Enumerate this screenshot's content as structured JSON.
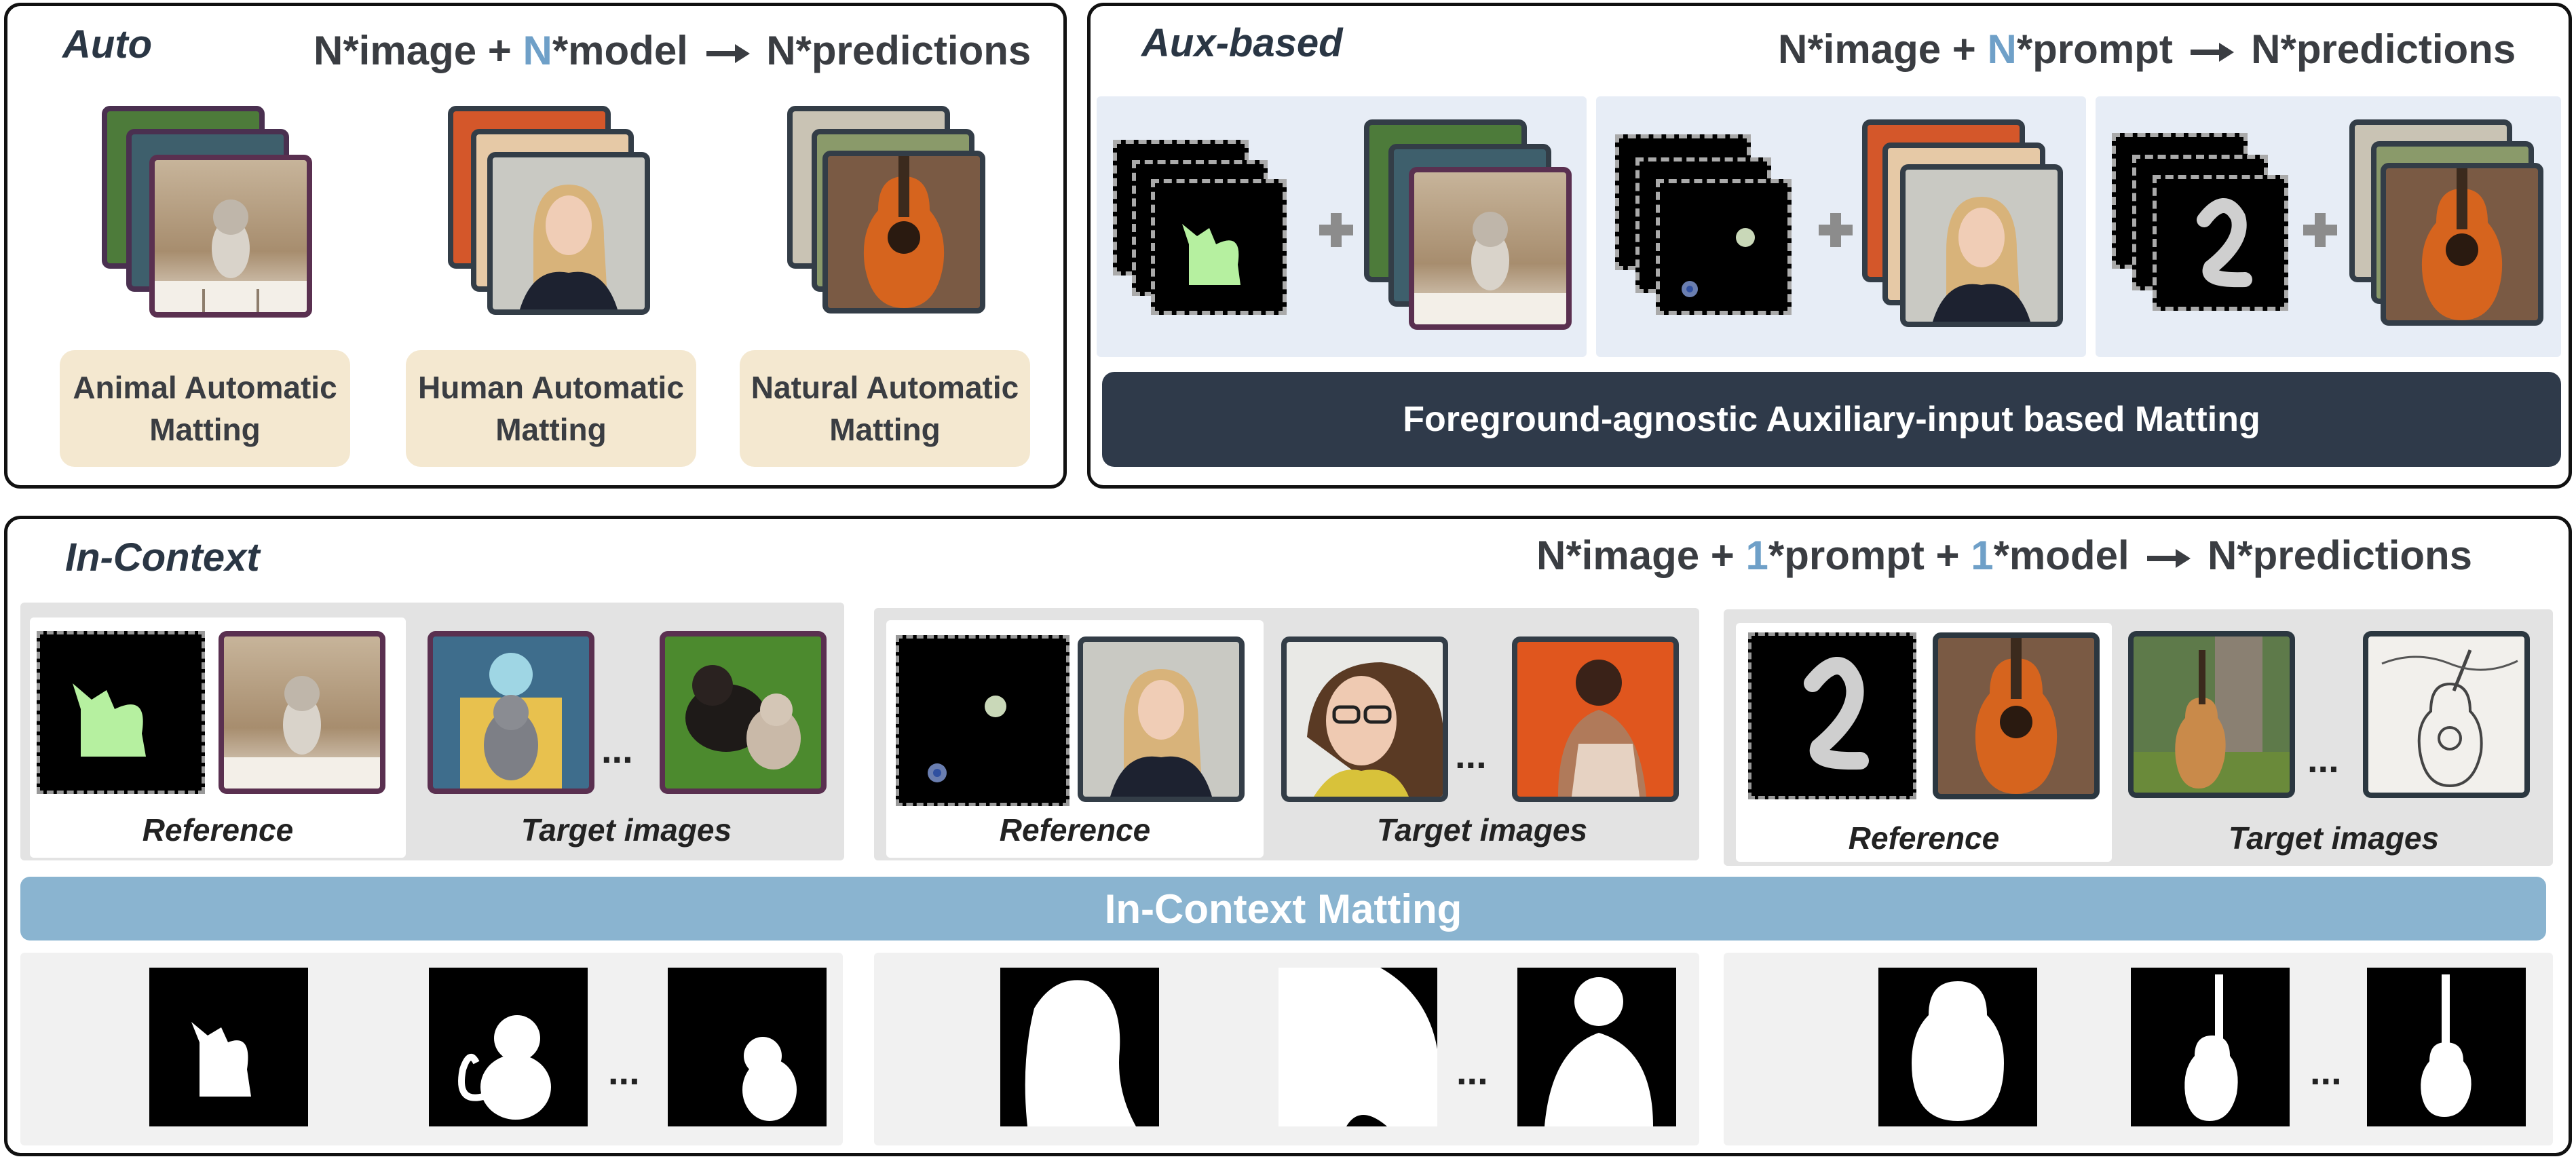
{
  "auto": {
    "tag": "Auto",
    "formula": {
      "a": "N*image + ",
      "n": "N",
      "b": "*model",
      "c": "N*predictions"
    },
    "labels": [
      [
        "Animal Automatic",
        "Matting"
      ],
      [
        "Human Automatic",
        "Matting"
      ],
      [
        "Natural Automatic",
        "Matting"
      ]
    ]
  },
  "aux": {
    "tag": "Aux-based",
    "formula": {
      "a": "N*image + ",
      "n": "N",
      "b": "*prompt",
      "c": "N*predictions"
    },
    "banner": "Foreground-agnostic Auxiliary-input based Matting"
  },
  "incontext": {
    "tag": "In-Context",
    "formula": {
      "a": "N*image + ",
      "one1": "1",
      "b": "*prompt + ",
      "one2": "1",
      "c": "*model",
      "d": "N*predictions"
    },
    "reference_label": "Reference",
    "target_label": "Target images",
    "ellipsis": "...",
    "banner": "In-Context Matting"
  },
  "colors": {
    "accent_blue": "#6fa0c8",
    "banner_dark": "#2f3a4a",
    "banner_blue": "#8ab4d0",
    "label_beige": "#f4e8d0",
    "mask_green": "#b6f0a0"
  }
}
